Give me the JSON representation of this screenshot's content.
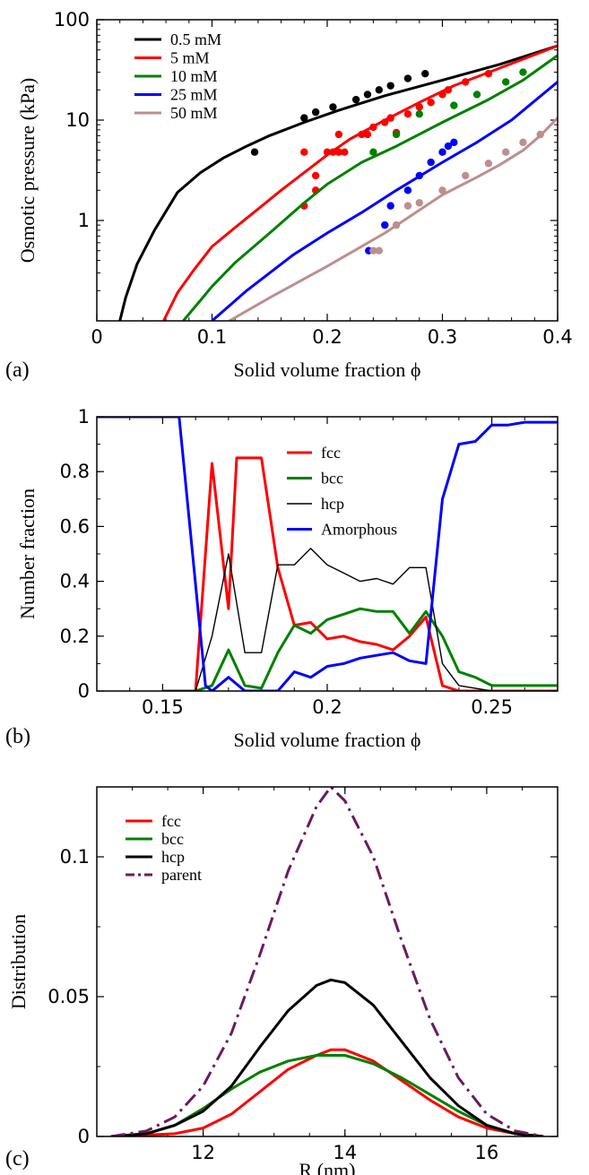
{
  "chart_data": [
    {
      "type": "line",
      "panel_label": "(a)",
      "xlabel": "Solid volume fraction ϕ",
      "ylabel": "Osmotic pressure (kPa)",
      "xlim": [
        0,
        0.4
      ],
      "ylim": [
        0.1,
        100
      ],
      "yscale": "log",
      "xticks": [
        0,
        0.1,
        0.2,
        0.3,
        0.4
      ],
      "xtick_labels": [
        "0",
        "0.1",
        "0.2",
        "0.3",
        "0.4"
      ],
      "yticks": [
        1,
        10,
        100
      ],
      "ytick_labels": [
        "1",
        "10",
        "100"
      ],
      "legend_position": "top-left",
      "series": [
        {
          "name": "0.5 mM",
          "color": "#000000",
          "line": {
            "x": [
              0.02,
              0.025,
              0.035,
              0.05,
              0.07,
              0.09,
              0.11,
              0.13,
              0.15,
              0.18,
              0.21,
              0.25,
              0.3,
              0.35,
              0.4
            ],
            "y": [
              0.1,
              0.17,
              0.37,
              0.8,
              1.9,
              3.0,
              4.2,
              5.5,
              7.0,
              9.5,
              12.5,
              17.5,
              25,
              36,
              55
            ]
          },
          "points": {
            "x": [
              0.137,
              0.18,
              0.19,
              0.205,
              0.225,
              0.235,
              0.245,
              0.255,
              0.27,
              0.285
            ],
            "y": [
              4.8,
              10.5,
              12,
              13.5,
              16,
              18,
              20,
              22,
              26,
              29
            ]
          }
        },
        {
          "name": "5 mM",
          "color": "#ff0000",
          "line": {
            "x": [
              0.058,
              0.07,
              0.085,
              0.1,
              0.12,
              0.14,
              0.16,
              0.18,
              0.2,
              0.22,
              0.25,
              0.28,
              0.31,
              0.35,
              0.4
            ],
            "y": [
              0.1,
              0.19,
              0.33,
              0.55,
              0.85,
              1.3,
              2.0,
              3.0,
              4.5,
              6.5,
              10.0,
              15,
              22,
              33,
              55
            ]
          },
          "points": {
            "x": [
              0.18,
              0.18,
              0.19,
              0.19,
              0.2,
              0.205,
              0.21,
              0.21,
              0.215,
              0.23,
              0.235,
              0.24,
              0.25,
              0.255,
              0.26,
              0.27,
              0.28,
              0.29,
              0.3,
              0.305,
              0.32,
              0.34
            ],
            "y": [
              1.4,
              4.8,
              2.0,
              2.8,
              4.8,
              4.8,
              7.2,
              4.8,
              4.8,
              7.2,
              7.2,
              8.5,
              9.5,
              10.5,
              7.5,
              11.5,
              13.5,
              15,
              18,
              20,
              24,
              29
            ]
          }
        },
        {
          "name": "10 mM",
          "color": "#008000",
          "line": {
            "x": [
              0.075,
              0.09,
              0.1,
              0.12,
              0.15,
              0.18,
              0.2,
              0.23,
              0.26,
              0.3,
              0.34,
              0.37,
              0.4
            ],
            "y": [
              0.1,
              0.16,
              0.22,
              0.38,
              0.75,
              1.5,
              2.3,
              3.8,
              5.5,
              9.5,
              16,
              25,
              44
            ]
          },
          "points": {
            "x": [
              0.24,
              0.26,
              0.28,
              0.31,
              0.33,
              0.355,
              0.37
            ],
            "y": [
              4.8,
              7.2,
              11.5,
              14,
              18,
              24,
              30
            ]
          }
        },
        {
          "name": "25 mM",
          "color": "#0000ff",
          "line": {
            "x": [
              0.1,
              0.13,
              0.17,
              0.2,
              0.23,
              0.26,
              0.3,
              0.33,
              0.36,
              0.4
            ],
            "y": [
              0.1,
              0.2,
              0.45,
              0.75,
              1.2,
              2.0,
              3.8,
              6.0,
              10.0,
              24
            ]
          },
          "points": {
            "x": [
              0.236,
              0.25,
              0.255,
              0.27,
              0.28,
              0.29,
              0.3,
              0.305,
              0.31
            ],
            "y": [
              0.5,
              0.9,
              1.4,
              2.0,
              2.8,
              3.8,
              4.8,
              5.5,
              6.0
            ]
          }
        },
        {
          "name": "50 mM",
          "color": "#bc8f8f",
          "line": {
            "x": [
              0.115,
              0.15,
              0.2,
              0.25,
              0.3,
              0.33,
              0.35,
              0.37,
              0.385,
              0.4
            ],
            "y": [
              0.1,
              0.17,
              0.35,
              0.75,
              1.8,
              2.7,
              3.6,
              5.0,
              7.0,
              10.5
            ]
          },
          "points": {
            "x": [
              0.24,
              0.245,
              0.26,
              0.27,
              0.28,
              0.3,
              0.32,
              0.34,
              0.355,
              0.37,
              0.385
            ],
            "y": [
              0.5,
              0.5,
              0.9,
              1.4,
              1.5,
              2.0,
              2.8,
              3.7,
              4.8,
              6.0,
              7.2
            ]
          }
        }
      ]
    },
    {
      "type": "line",
      "panel_label": "(b)",
      "xlabel": "Solid volume fraction ϕ",
      "ylabel": "Number fraction",
      "xlim": [
        0.13,
        0.27
      ],
      "ylim": [
        0,
        1
      ],
      "xticks": [
        0.15,
        0.2,
        0.25
      ],
      "xtick_labels": [
        "0.15",
        "0.2",
        "0.25"
      ],
      "yticks": [
        0,
        0.2,
        0.4,
        0.6,
        0.8,
        1
      ],
      "ytick_labels": [
        "0",
        "0.2",
        "0.4",
        "0.6",
        "0.8",
        "1"
      ],
      "legend_position": "top-center",
      "series": [
        {
          "name": "fcc",
          "color": "#ff0000",
          "x": [
            0.15,
            0.16,
            0.165,
            0.17,
            0.1725,
            0.175,
            0.18,
            0.185,
            0.19,
            0.195,
            0.2,
            0.205,
            0.21,
            0.215,
            0.22,
            0.225,
            0.23,
            0.235,
            0.24,
            0.25,
            0.27
          ],
          "y": [
            0,
            0,
            0.83,
            0.3,
            0.85,
            0.85,
            0.85,
            0.45,
            0.24,
            0.25,
            0.19,
            0.2,
            0.18,
            0.17,
            0.15,
            0.2,
            0.27,
            0.02,
            0,
            0,
            0
          ]
        },
        {
          "name": "bcc",
          "color": "#008000",
          "x": [
            0.15,
            0.16,
            0.165,
            0.17,
            0.175,
            0.18,
            0.185,
            0.19,
            0.195,
            0.2,
            0.205,
            0.21,
            0.215,
            0.22,
            0.225,
            0.23,
            0.235,
            0.24,
            0.245,
            0.25,
            0.27
          ],
          "y": [
            0,
            0,
            0.02,
            0.15,
            0.02,
            0.01,
            0.14,
            0.24,
            0.21,
            0.26,
            0.28,
            0.3,
            0.29,
            0.29,
            0.21,
            0.29,
            0.2,
            0.07,
            0.05,
            0.02,
            0.02
          ]
        },
        {
          "name": "hcp",
          "color": "#000000",
          "x": [
            0.15,
            0.16,
            0.165,
            0.17,
            0.175,
            0.18,
            0.185,
            0.19,
            0.195,
            0.2,
            0.205,
            0.21,
            0.215,
            0.22,
            0.225,
            0.23,
            0.235,
            0.24,
            0.25,
            0.27
          ],
          "y": [
            0,
            0,
            0.2,
            0.5,
            0.14,
            0.14,
            0.46,
            0.46,
            0.52,
            0.46,
            0.43,
            0.4,
            0.41,
            0.39,
            0.45,
            0.45,
            0.1,
            0.02,
            0,
            0
          ]
        },
        {
          "name": "Amorphous",
          "color": "#0000ff",
          "x": [
            0.13,
            0.155,
            0.163,
            0.165,
            0.17,
            0.175,
            0.18,
            0.185,
            0.19,
            0.195,
            0.2,
            0.205,
            0.21,
            0.215,
            0.22,
            0.225,
            0.23,
            0.235,
            0.24,
            0.245,
            0.25,
            0.255,
            0.26,
            0.27
          ],
          "y": [
            1,
            1,
            0.02,
            0,
            0.05,
            0,
            0,
            0,
            0.07,
            0.05,
            0.09,
            0.1,
            0.12,
            0.13,
            0.14,
            0.11,
            0.1,
            0.7,
            0.9,
            0.91,
            0.97,
            0.97,
            0.98,
            0.98
          ]
        }
      ]
    },
    {
      "type": "line",
      "panel_label": "(c)",
      "xlabel": "R (nm)",
      "ylabel": "Distribution",
      "xlim": [
        10.5,
        17
      ],
      "ylim": [
        0,
        0.125
      ],
      "xticks": [
        12,
        14,
        16
      ],
      "xtick_labels": [
        "12",
        "14",
        "16"
      ],
      "yticks": [
        0,
        0.05,
        0.1
      ],
      "ytick_labels": [
        "0",
        "0.05",
        "0.1"
      ],
      "legend_position": "top-left",
      "series": [
        {
          "name": "fcc",
          "color": "#ff0000",
          "x": [
            10.7,
            11.2,
            11.6,
            12.0,
            12.4,
            12.8,
            13.2,
            13.6,
            13.8,
            14.0,
            14.4,
            14.8,
            15.2,
            15.6,
            16.0,
            16.4,
            16.8
          ],
          "y": [
            0,
            0.0005,
            0.001,
            0.003,
            0.008,
            0.016,
            0.024,
            0.029,
            0.031,
            0.031,
            0.027,
            0.02,
            0.013,
            0.007,
            0.003,
            0.001,
            0
          ]
        },
        {
          "name": "bcc",
          "color": "#008000",
          "x": [
            10.7,
            11.2,
            11.6,
            12.0,
            12.4,
            12.8,
            13.2,
            13.6,
            14.0,
            14.4,
            14.8,
            15.2,
            15.6,
            16.0,
            16.4,
            16.8
          ],
          "y": [
            0,
            0.001,
            0.004,
            0.01,
            0.017,
            0.023,
            0.027,
            0.029,
            0.029,
            0.026,
            0.021,
            0.015,
            0.009,
            0.004,
            0.001,
            0
          ]
        },
        {
          "name": "hcp",
          "color": "#000000",
          "x": [
            10.7,
            11.2,
            11.6,
            12.0,
            12.4,
            12.8,
            13.2,
            13.6,
            13.8,
            14.0,
            14.4,
            14.8,
            15.2,
            15.6,
            16.0,
            16.4,
            16.8
          ],
          "y": [
            0,
            0.001,
            0.004,
            0.009,
            0.018,
            0.032,
            0.045,
            0.054,
            0.056,
            0.055,
            0.047,
            0.034,
            0.021,
            0.011,
            0.004,
            0.001,
            0
          ]
        },
        {
          "name": "parent",
          "color": "#6b1a5e",
          "dash": "dashdot",
          "x": [
            10.7,
            11.2,
            11.6,
            12.0,
            12.4,
            12.8,
            13.2,
            13.6,
            13.8,
            14.0,
            14.4,
            14.8,
            15.2,
            15.6,
            16.0,
            16.4,
            16.8
          ],
          "y": [
            0,
            0.002,
            0.007,
            0.018,
            0.037,
            0.065,
            0.095,
            0.118,
            0.125,
            0.12,
            0.1,
            0.07,
            0.042,
            0.021,
            0.008,
            0.002,
            0
          ]
        }
      ]
    }
  ]
}
